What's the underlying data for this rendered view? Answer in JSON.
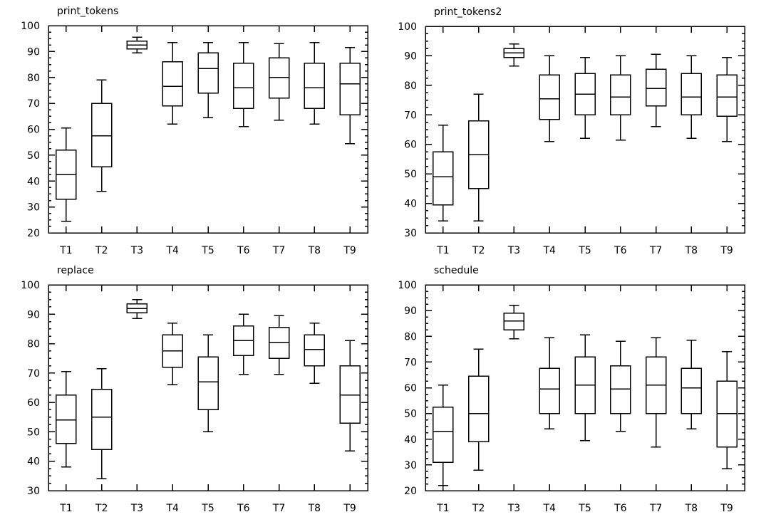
{
  "chart_data": [
    {
      "type": "box",
      "title": "print_tokens",
      "xlabel": "",
      "ylabel": "",
      "ylim": [
        20,
        100
      ],
      "yticks": [
        20,
        30,
        40,
        50,
        60,
        70,
        80,
        90,
        100
      ],
      "categories": [
        "T1",
        "T2",
        "T3",
        "T4",
        "T5",
        "T6",
        "T7",
        "T8",
        "T9"
      ],
      "boxes": [
        {
          "min": 24.5,
          "q1": 33,
          "median": 42.5,
          "q3": 52,
          "max": 60.5
        },
        {
          "min": 36,
          "q1": 45.5,
          "median": 57.5,
          "q3": 70,
          "max": 79
        },
        {
          "min": 89.5,
          "q1": 91,
          "median": 92.5,
          "q3": 94,
          "max": 95.5
        },
        {
          "min": 62,
          "q1": 69,
          "median": 76.5,
          "q3": 86,
          "max": 93.5
        },
        {
          "min": 64.5,
          "q1": 74,
          "median": 83.5,
          "q3": 89.5,
          "max": 93.5
        },
        {
          "min": 61,
          "q1": 68,
          "median": 76,
          "q3": 85.5,
          "max": 93.5
        },
        {
          "min": 63.5,
          "q1": 72,
          "median": 80,
          "q3": 87.5,
          "max": 93
        },
        {
          "min": 62,
          "q1": 68,
          "median": 76,
          "q3": 85.5,
          "max": 93.5
        },
        {
          "min": 54.5,
          "q1": 65.5,
          "median": 77.5,
          "q3": 85.5,
          "max": 91.5
        }
      ]
    },
    {
      "type": "box",
      "title": "print_tokens2",
      "xlabel": "",
      "ylabel": "",
      "ylim": [
        30,
        100
      ],
      "yticks": [
        30,
        40,
        50,
        60,
        70,
        80,
        90,
        100
      ],
      "categories": [
        "T1",
        "T2",
        "T3",
        "T4",
        "T5",
        "T6",
        "T7",
        "T8",
        "T9"
      ],
      "boxes": [
        {
          "min": 34,
          "q1": 39.5,
          "median": 49,
          "q3": 57.5,
          "max": 66.5
        },
        {
          "min": 34,
          "q1": 45,
          "median": 56.5,
          "q3": 68,
          "max": 77
        },
        {
          "min": 86.5,
          "q1": 89.5,
          "median": 91,
          "q3": 92.5,
          "max": 94
        },
        {
          "min": 61,
          "q1": 68.5,
          "median": 75.5,
          "q3": 83.5,
          "max": 90
        },
        {
          "min": 62,
          "q1": 70,
          "median": 77,
          "q3": 84,
          "max": 89.5
        },
        {
          "min": 61.5,
          "q1": 70,
          "median": 76,
          "q3": 83.5,
          "max": 90
        },
        {
          "min": 66,
          "q1": 73,
          "median": 79,
          "q3": 85.5,
          "max": 90.5
        },
        {
          "min": 62,
          "q1": 70,
          "median": 76,
          "q3": 84,
          "max": 90
        },
        {
          "min": 61,
          "q1": 69.5,
          "median": 76,
          "q3": 83.5,
          "max": 89.5
        }
      ]
    },
    {
      "type": "box",
      "title": "replace",
      "xlabel": "",
      "ylabel": "",
      "ylim": [
        30,
        100
      ],
      "yticks": [
        30,
        40,
        50,
        60,
        70,
        80,
        90,
        100
      ],
      "categories": [
        "T1",
        "T2",
        "T3",
        "T4",
        "T5",
        "T6",
        "T7",
        "T8",
        "T9"
      ],
      "boxes": [
        {
          "min": 38,
          "q1": 46,
          "median": 54,
          "q3": 62.5,
          "max": 70.5
        },
        {
          "min": 34,
          "q1": 44,
          "median": 55,
          "q3": 64.5,
          "max": 71.5
        },
        {
          "min": 88.5,
          "q1": 90.5,
          "median": 92,
          "q3": 93.5,
          "max": 95
        },
        {
          "min": 66,
          "q1": 72,
          "median": 77.5,
          "q3": 83,
          "max": 87
        },
        {
          "min": 50,
          "q1": 57.5,
          "median": 67,
          "q3": 75.5,
          "max": 83
        },
        {
          "min": 69.5,
          "q1": 76,
          "median": 81,
          "q3": 86,
          "max": 90
        },
        {
          "min": 69.5,
          "q1": 75,
          "median": 80.5,
          "q3": 85.5,
          "max": 89.5
        },
        {
          "min": 66.5,
          "q1": 72.5,
          "median": 78,
          "q3": 83,
          "max": 87
        },
        {
          "min": 43.5,
          "q1": 53,
          "median": 62.5,
          "q3": 72.5,
          "max": 81
        }
      ]
    },
    {
      "type": "box",
      "title": "schedule",
      "xlabel": "",
      "ylabel": "",
      "ylim": [
        20,
        100
      ],
      "yticks": [
        20,
        30,
        40,
        50,
        60,
        70,
        80,
        90,
        100
      ],
      "categories": [
        "T1",
        "T2",
        "T3",
        "T4",
        "T5",
        "T6",
        "T7",
        "T8",
        "T9"
      ],
      "boxes": [
        {
          "min": 22,
          "q1": 31,
          "median": 43,
          "q3": 52.5,
          "max": 61
        },
        {
          "min": 28,
          "q1": 39,
          "median": 50,
          "q3": 64.5,
          "max": 75
        },
        {
          "min": 79,
          "q1": 82.5,
          "median": 86,
          "q3": 89,
          "max": 92
        },
        {
          "min": 44,
          "q1": 50,
          "median": 59.5,
          "q3": 67.5,
          "max": 79.5
        },
        {
          "min": 39.5,
          "q1": 50,
          "median": 61,
          "q3": 72,
          "max": 80.5
        },
        {
          "min": 43,
          "q1": 50,
          "median": 59.5,
          "q3": 68.5,
          "max": 78
        },
        {
          "min": 37,
          "q1": 50,
          "median": 61,
          "q3": 72,
          "max": 79.5
        },
        {
          "min": 44,
          "q1": 50,
          "median": 60,
          "q3": 67.5,
          "max": 78.5
        },
        {
          "min": 28.5,
          "q1": 37,
          "median": 50,
          "q3": 62.5,
          "max": 74
        }
      ]
    }
  ]
}
